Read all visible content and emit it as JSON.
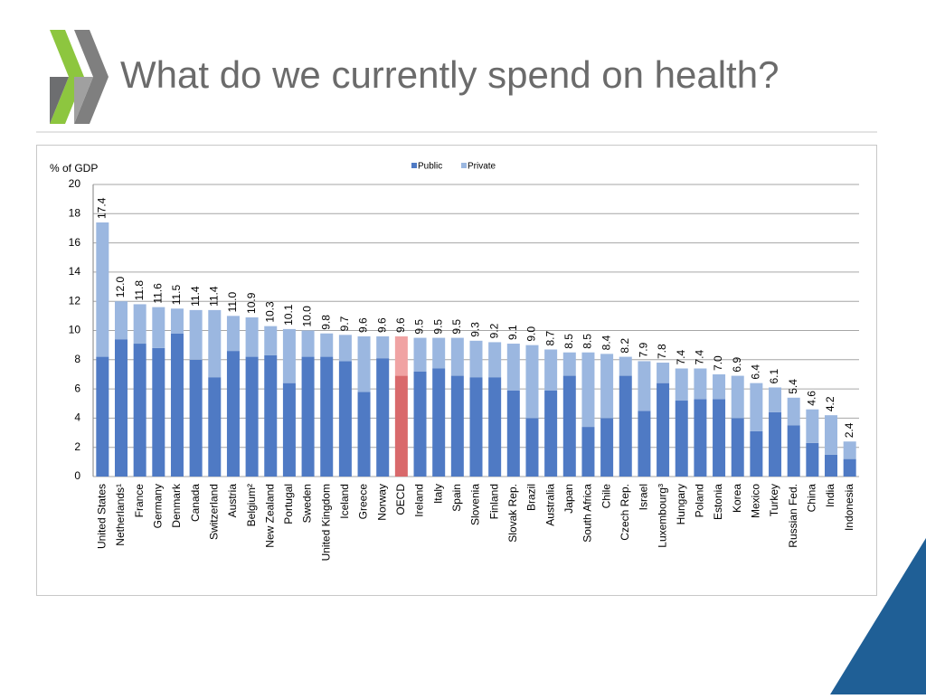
{
  "slide": {
    "title": "What do we currently spend on health?"
  },
  "chart_data": {
    "type": "stacked_bar",
    "y_axis_label": "% of GDP",
    "categories": [
      "United States",
      "Netherlands¹",
      "France",
      "Germany",
      "Denmark",
      "Canada",
      "Switzerland",
      "Austria",
      "Belgium²",
      "New Zealand",
      "Portugal",
      "Sweden",
      "United Kingdom",
      "Iceland",
      "Greece",
      "Norway",
      "OECD",
      "Ireland",
      "Italy",
      "Spain",
      "Slovenia",
      "Finland",
      "Slovak Rep.",
      "Brazil",
      "Australia",
      "Japan",
      "South Africa",
      "Chile",
      "Czech Rep.",
      "Israel",
      "Luxembourg³",
      "Hungary",
      "Poland",
      "Estonia",
      "Korea",
      "Mexico",
      "Turkey",
      "Russian Fed.",
      "China",
      "India",
      "Indonesia"
    ],
    "series": [
      {
        "name": "Public",
        "color": "#4f7ac4",
        "highlight_color": "#d9696b",
        "values": [
          8.2,
          9.4,
          9.1,
          8.8,
          9.8,
          8.0,
          6.8,
          8.6,
          8.2,
          8.3,
          6.4,
          8.2,
          8.2,
          7.9,
          5.8,
          8.1,
          6.9,
          7.2,
          7.4,
          6.9,
          6.8,
          6.8,
          5.9,
          4.0,
          5.9,
          6.9,
          3.4,
          4.0,
          6.9,
          4.5,
          6.4,
          5.2,
          5.3,
          5.3,
          4.0,
          3.1,
          4.4,
          3.5,
          2.3,
          1.5,
          1.2
        ]
      },
      {
        "name": "Private",
        "color": "#9bb7e0",
        "highlight_color": "#f0a3a3",
        "values": [
          9.2,
          2.6,
          2.7,
          2.8,
          1.7,
          3.4,
          4.6,
          2.4,
          2.7,
          2.0,
          3.7,
          1.8,
          1.6,
          1.8,
          3.8,
          1.5,
          2.7,
          2.3,
          2.1,
          2.6,
          2.5,
          2.4,
          3.2,
          5.0,
          2.8,
          1.6,
          5.1,
          4.4,
          1.3,
          3.4,
          1.4,
          2.2,
          2.1,
          1.7,
          2.9,
          3.3,
          1.7,
          1.9,
          2.3,
          2.7,
          1.2
        ]
      }
    ],
    "highlight_category": "OECD",
    "totals": [
      17.4,
      12.0,
      11.8,
      11.6,
      11.5,
      11.4,
      11.4,
      11.0,
      10.9,
      10.3,
      10.1,
      10.0,
      9.8,
      9.7,
      9.6,
      9.6,
      9.6,
      9.5,
      9.5,
      9.5,
      9.3,
      9.2,
      9.1,
      9.0,
      8.7,
      8.5,
      8.5,
      8.4,
      8.2,
      7.9,
      7.8,
      7.4,
      7.4,
      7.0,
      6.9,
      6.4,
      6.1,
      5.4,
      4.6,
      4.2,
      2.4
    ],
    "total_labels": [
      "17.4",
      "12.0",
      "11.8",
      "11.6",
      "11.5",
      "11.4",
      "11.4",
      "11.0",
      "10.9",
      "10.3",
      "10.1",
      "10.0",
      "9.8",
      "9.7",
      "9.6",
      "9.6",
      "9.6",
      "9.5",
      "9.5",
      "9.5",
      "9.3",
      "9.2",
      "9.1",
      "9.0",
      "8.7",
      "8.5",
      "8.5",
      "8.4",
      "8.2",
      "7.9",
      "7.8",
      "7.4",
      "7.4",
      "7.0",
      "6.9",
      "6.4",
      "6.1",
      "5.4",
      "4.6",
      "4.2",
      "2.4"
    ],
    "ylim": [
      0,
      20
    ],
    "yticks": [
      0,
      2,
      4,
      6,
      8,
      10,
      12,
      14,
      16,
      18,
      20
    ],
    "grid": true
  }
}
